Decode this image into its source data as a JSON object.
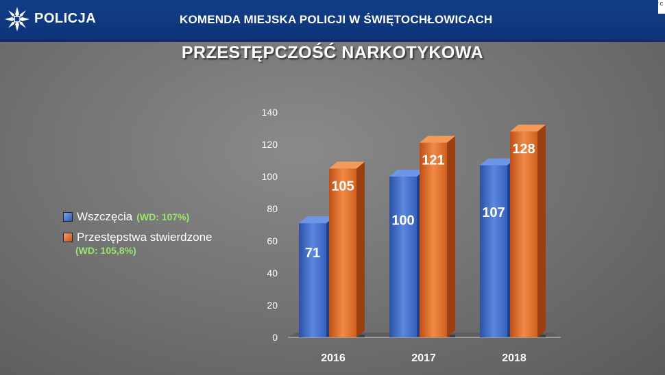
{
  "header": {
    "brand": "POLICJA",
    "title": "KOMENDA MIEJSKA POLICJI W ŚWIĘTOCHŁOWICACH",
    "corner_badge": "c"
  },
  "slide_title": "PRZESTĘPCZOŚĆ NARKOTYKOWA",
  "legend": [
    {
      "label": "Wszczęcia",
      "note": "(WD: 107%)",
      "color": "#3a62c0"
    },
    {
      "label": "Przestępstwa stwierdzone",
      "note": "(WD: 105,8%)",
      "color": "#e0702c"
    }
  ],
  "colors": {
    "header_bg": "#123f88",
    "note_green": "#9be86a"
  },
  "chart_data": {
    "type": "bar",
    "title": "",
    "xlabel": "",
    "ylabel": "",
    "categories": [
      "2016",
      "2017",
      "2018"
    ],
    "series": [
      {
        "name": "Wszczęcia",
        "values": [
          71,
          100,
          107
        ]
      },
      {
        "name": "Przestępstwa stwierdzone",
        "values": [
          105,
          121,
          128
        ]
      }
    ],
    "ylim": [
      0,
      140
    ],
    "yticks": [
      0,
      20,
      40,
      60,
      80,
      100,
      120,
      140
    ],
    "grid": false,
    "legend_position": "left",
    "bar_style": "3d"
  }
}
